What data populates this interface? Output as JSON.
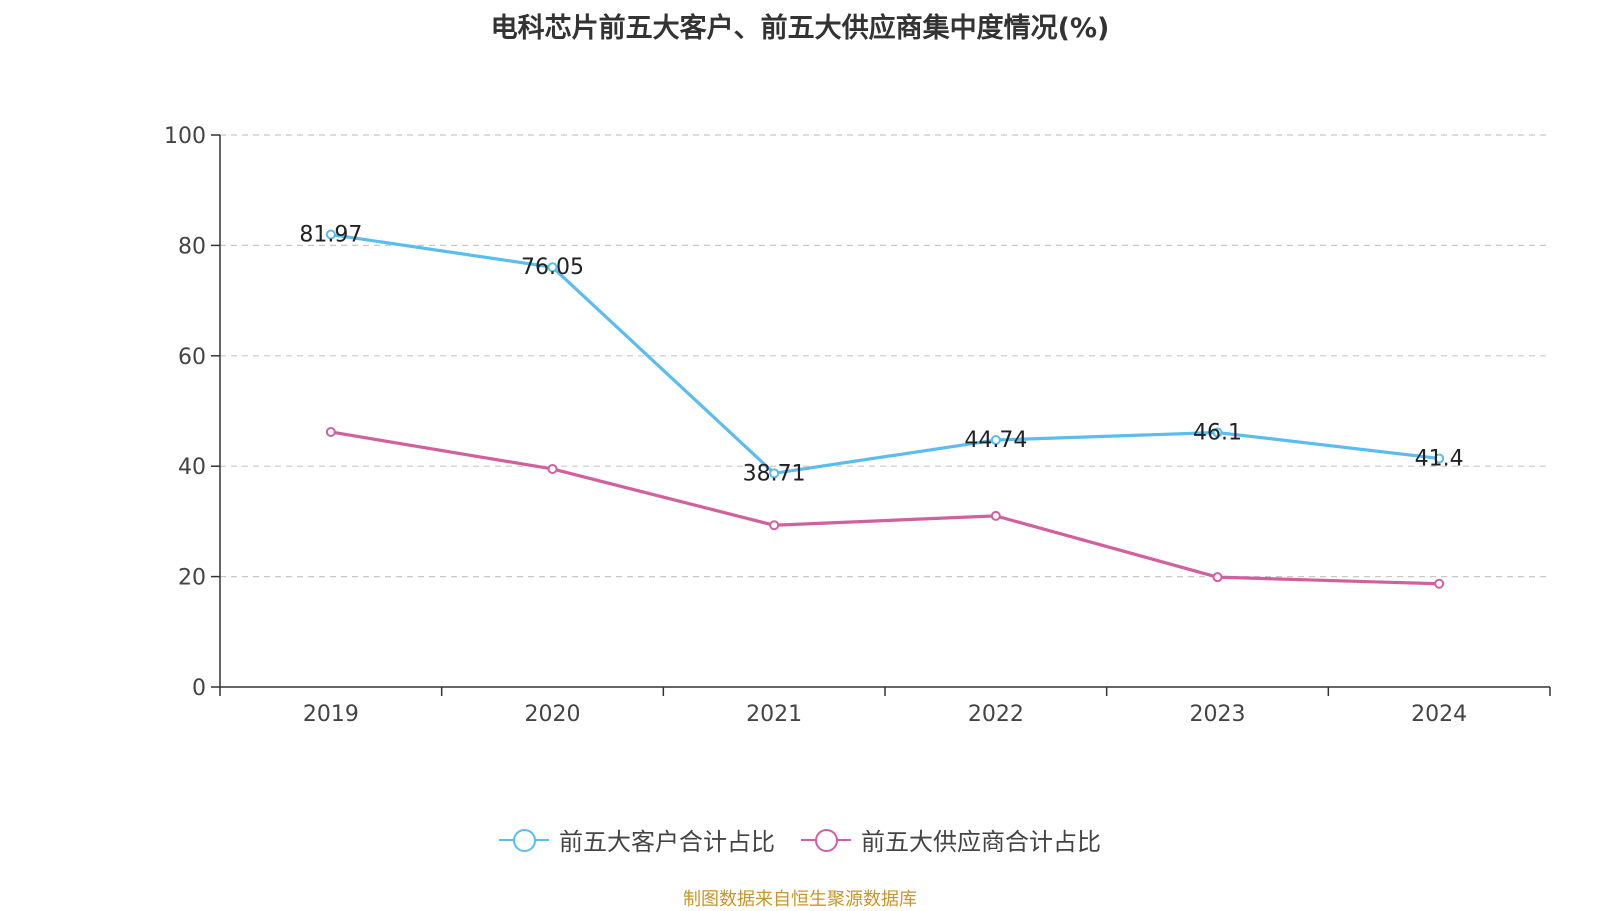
{
  "chart_data": {
    "type": "line",
    "title": "电科芯片前五大客户、前五大供应商集中度情况(%)",
    "categories": [
      "2019",
      "2020",
      "2021",
      "2022",
      "2023",
      "2024"
    ],
    "ylim": [
      0,
      100
    ],
    "yticks": [
      0,
      20,
      40,
      60,
      80,
      100
    ],
    "grid": true,
    "legend_position": "bottom",
    "series": [
      {
        "name": "前五大客户合计占比",
        "color": "#5bbcf0",
        "values": [
          81.97,
          76.05,
          38.71,
          44.74,
          46.1,
          41.4
        ],
        "labels": [
          "81.97",
          "76.05",
          "38.71",
          "44.74",
          "46.1",
          "41.4"
        ]
      },
      {
        "name": "前五大供应商合计占比",
        "color": "#d2609f",
        "values": [
          46.2,
          39.5,
          29.3,
          31.0,
          19.9,
          18.7
        ],
        "labels": []
      }
    ]
  },
  "footer": {
    "source": "制图数据来自恒生聚源数据库"
  }
}
